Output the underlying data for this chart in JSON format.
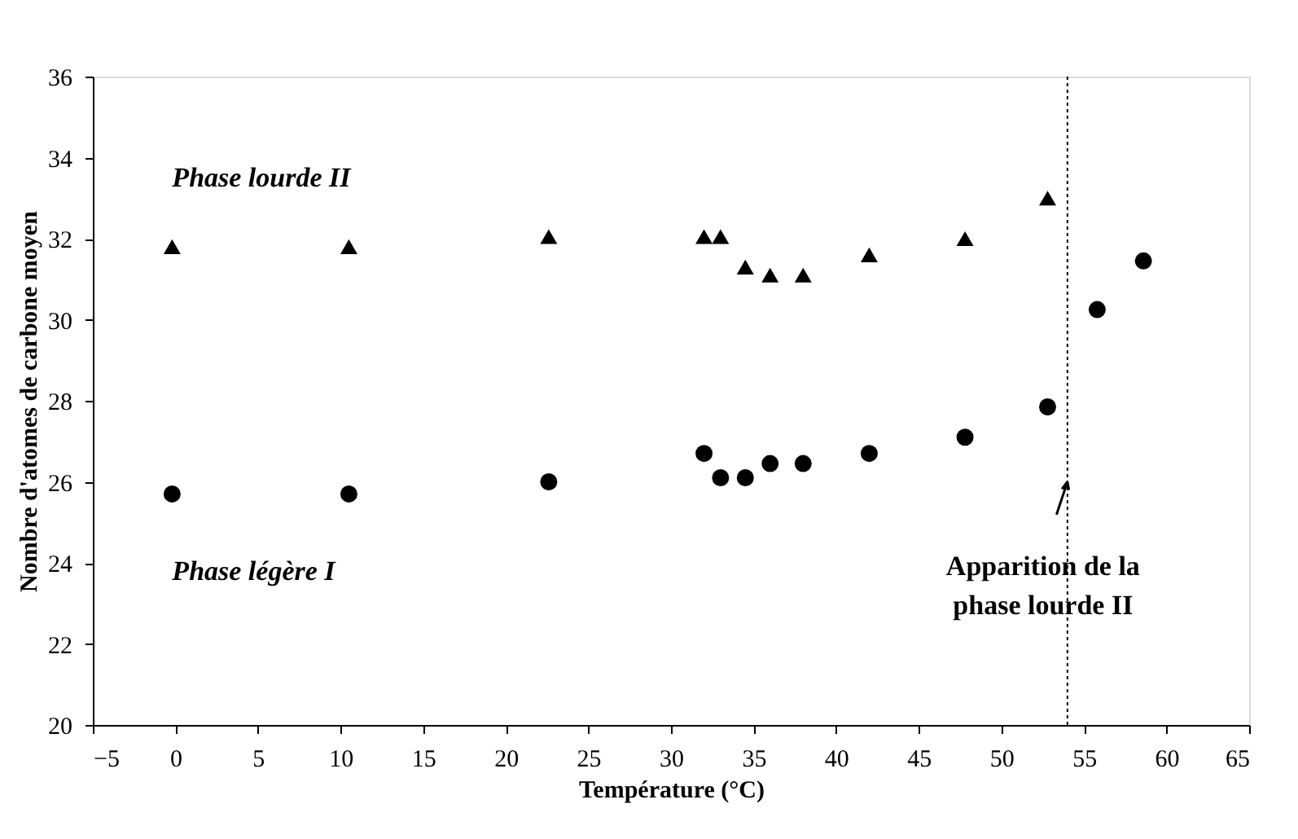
{
  "chart_data": {
    "type": "scatter",
    "xlabel": "Température (°C)",
    "ylabel": "Nombre d'atomes de carbone moyen",
    "xlim": [
      -5,
      65
    ],
    "xticks": [
      -5,
      0,
      5,
      10,
      15,
      20,
      25,
      30,
      35,
      40,
      45,
      50,
      55,
      60,
      65
    ],
    "ylim": [
      20,
      36
    ],
    "yticks": [
      20,
      22,
      24,
      26,
      28,
      30,
      32,
      34,
      36
    ],
    "grid": false,
    "legend": false,
    "series": [
      {
        "name": "Phase lourde II",
        "color": "#000000",
        "marker": "triangle",
        "x": [
          -0.2,
          10.5,
          22.6,
          32,
          33,
          34.5,
          36,
          38,
          42,
          47.8,
          52.8
        ],
        "values": [
          31.8,
          31.8,
          32.05,
          32.05,
          32.05,
          31.3,
          31.1,
          31.1,
          31.6,
          32.0,
          33.0
        ]
      },
      {
        "name": "Phase légère I",
        "color": "#000000",
        "marker": "circle",
        "x": [
          -0.2,
          10.5,
          22.6,
          32,
          33,
          34.5,
          36,
          38,
          42,
          47.8,
          52.8,
          55.8,
          58.6
        ],
        "values": [
          25.7,
          25.7,
          26.0,
          26.7,
          26.1,
          26.1,
          26.45,
          26.45,
          26.7,
          27.1,
          27.85,
          30.25,
          31.45
        ]
      }
    ],
    "ref_lines": [
      {
        "axis": "x",
        "value": 54,
        "line_style": "dotted",
        "color": "#000000"
      }
    ],
    "annotations": [
      {
        "text": "Apparition de  la\nphase lourde II",
        "x": 54,
        "y": 26
      }
    ]
  }
}
